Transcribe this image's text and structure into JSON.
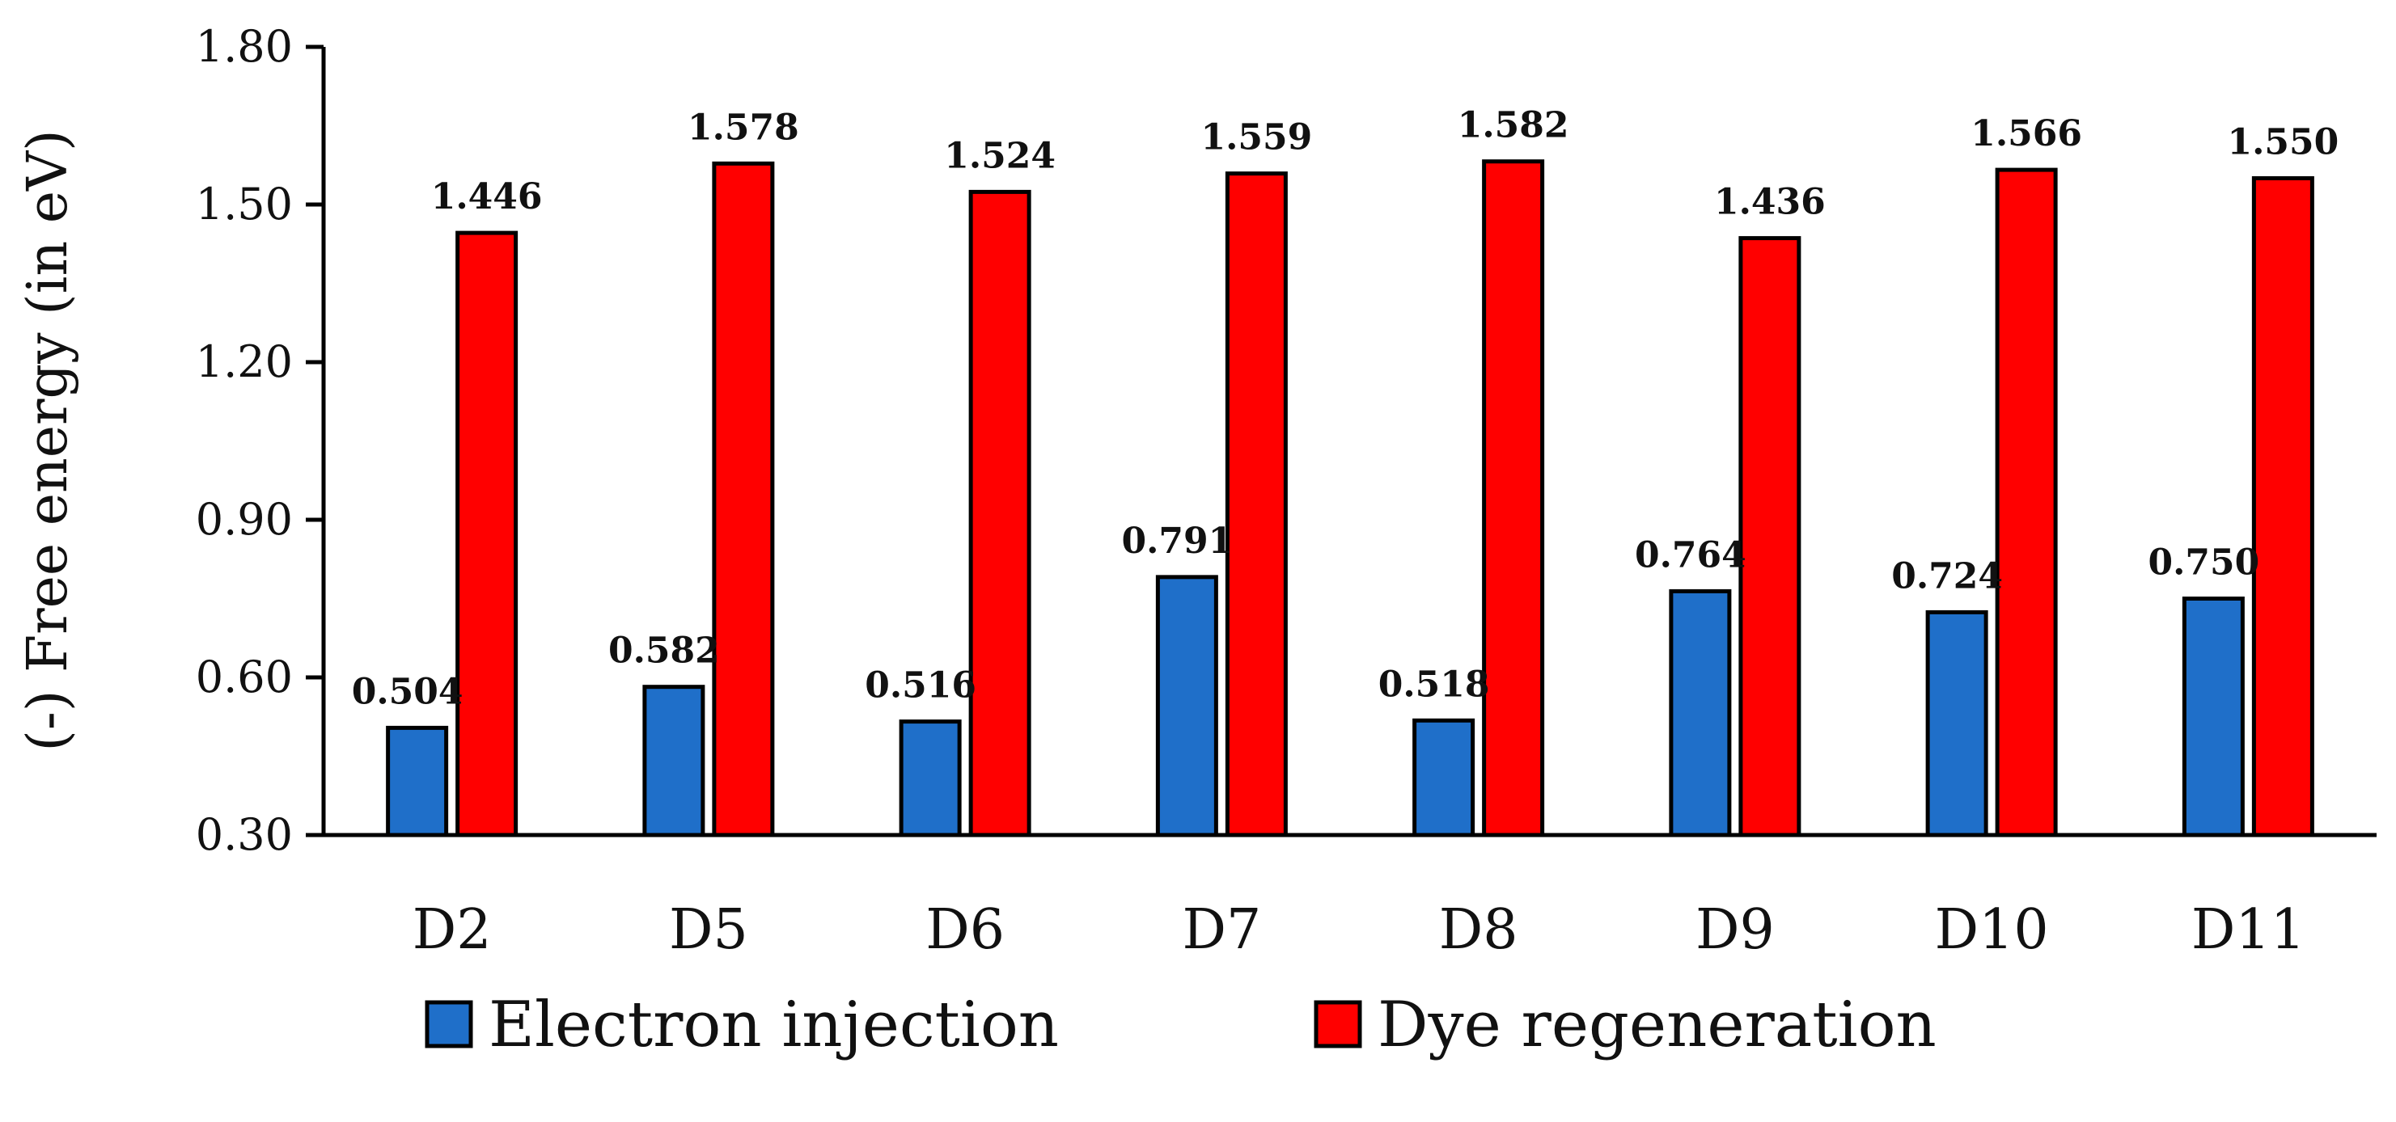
{
  "chart_data": {
    "type": "bar",
    "title": "",
    "xlabel": "",
    "ylabel": "(-)  Free energy (in eV)",
    "ylim": [
      0.3,
      1.8
    ],
    "yticks": [
      "0.30",
      "0.60",
      "0.90",
      "1.20",
      "1.50",
      "1.80"
    ],
    "categories": [
      "D2",
      "D5",
      "D6",
      "D7",
      "D8",
      "D9",
      "D10",
      "D11"
    ],
    "series": [
      {
        "name": "Electron injection",
        "color": "#1f6fc9",
        "values": [
          0.504,
          0.582,
          0.516,
          0.791,
          0.518,
          0.764,
          0.724,
          0.75
        ],
        "labels": [
          "0.504",
          "0.582",
          "0.516",
          "0.791",
          "0.518",
          "0.764",
          "0.724",
          "0.750"
        ]
      },
      {
        "name": "Dye regeneration",
        "color": "#ff0000",
        "values": [
          1.446,
          1.578,
          1.524,
          1.559,
          1.582,
          1.436,
          1.566,
          1.55
        ],
        "labels": [
          "1.446",
          "1.578",
          "1.524",
          "1.559",
          "1.582",
          "1.436",
          "1.566",
          "1.550"
        ]
      }
    ],
    "legend_position": "bottom",
    "grid": false
  }
}
